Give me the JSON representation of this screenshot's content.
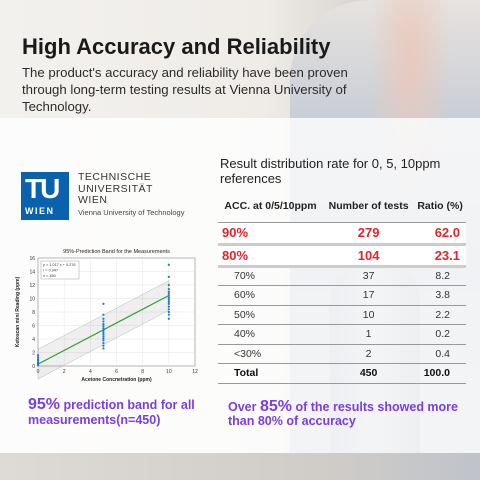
{
  "header": {
    "title": "High Accuracy and Reliability",
    "subtitle": "The product's accuracy and reliability have been proven through long-term testing results at Vienna University of Technology."
  },
  "logo": {
    "mark": "TU",
    "mark_sub": "WIEN",
    "lines": [
      "TECHNISCHE",
      "UNIVERSITÄT",
      "WIEN"
    ],
    "english": "Vienna University of Technology"
  },
  "chart_data": {
    "type": "scatter",
    "title": "95%-Prediction Band for the Measurements",
    "xlabel": "Acetone Concnetration (ppm)",
    "ylabel": "Ketoscan mini Reading (ppm)",
    "xlim": [
      0,
      12
    ],
    "ylim": [
      0,
      16
    ],
    "xticks": [
      0,
      2,
      4,
      6,
      8,
      10,
      12
    ],
    "yticks": [
      0,
      2,
      4,
      6,
      8,
      10,
      12,
      14,
      16
    ],
    "legend_lines": [
      "y = 1.017 x + 0.276",
      "r = 0.947",
      "n = 450"
    ],
    "fit": {
      "slope": 1.017,
      "intercept": 0.276
    },
    "series": [
      {
        "x": [
          0,
          0,
          0,
          0,
          0,
          0,
          0
        ],
        "y": [
          0.1,
          0.3,
          0.5,
          0.8,
          1.0,
          1.3,
          1.6
        ]
      },
      {
        "x": [
          5,
          5,
          5,
          5,
          5,
          5,
          5,
          5,
          5,
          5,
          5,
          5,
          5,
          5,
          5,
          5
        ],
        "y": [
          2.6,
          3.0,
          3.4,
          3.8,
          4.1,
          4.4,
          4.7,
          5.0,
          5.3,
          5.6,
          5.9,
          6.2,
          6.6,
          7.0,
          7.6,
          9.2
        ]
      },
      {
        "x": [
          10,
          10,
          10,
          10,
          10,
          10,
          10,
          10,
          10,
          10,
          10,
          10,
          10,
          10,
          10,
          10
        ],
        "y": [
          7.0,
          7.6,
          8.0,
          8.4,
          8.8,
          9.2,
          9.5,
          9.8,
          10.1,
          10.4,
          10.7,
          11.0,
          11.4,
          12.0,
          13.2,
          15.0
        ]
      }
    ]
  },
  "left_caption": {
    "pct": "95%",
    "text": " prediction band for all measurements(n=450)"
  },
  "table": {
    "title": "Result distribution rate for 0, 5, 10ppm references",
    "headers": [
      "ACC. at 0/5/10ppm",
      "Number of tests",
      "Ratio (%)"
    ],
    "rows": [
      {
        "acc": "90%",
        "tests": "279",
        "ratio": "62.0",
        "highlight": true
      },
      {
        "acc": "80%",
        "tests": "104",
        "ratio": "23.1",
        "highlight": true
      },
      {
        "acc": "70%",
        "tests": "37",
        "ratio": "8.2"
      },
      {
        "acc": "60%",
        "tests": "17",
        "ratio": "3.8"
      },
      {
        "acc": "50%",
        "tests": "10",
        "ratio": "2.2"
      },
      {
        "acc": "40%",
        "tests": "1",
        "ratio": "0.2"
      },
      {
        "acc": "<30%",
        "tests": "2",
        "ratio": "0.4"
      },
      {
        "acc": "Total",
        "tests": "450",
        "ratio": "100.0",
        "total": true
      }
    ]
  },
  "right_caption": {
    "pre": "Over ",
    "pct": "85%",
    "text": " of the results showed more than 80% of accuracy"
  },
  "colors": {
    "accent": "#7a3ee3",
    "highlight_red": "#e1262a",
    "tu_blue": "#0a61ae",
    "fit_line": "#2ca02c",
    "points": "#1f77d4"
  }
}
